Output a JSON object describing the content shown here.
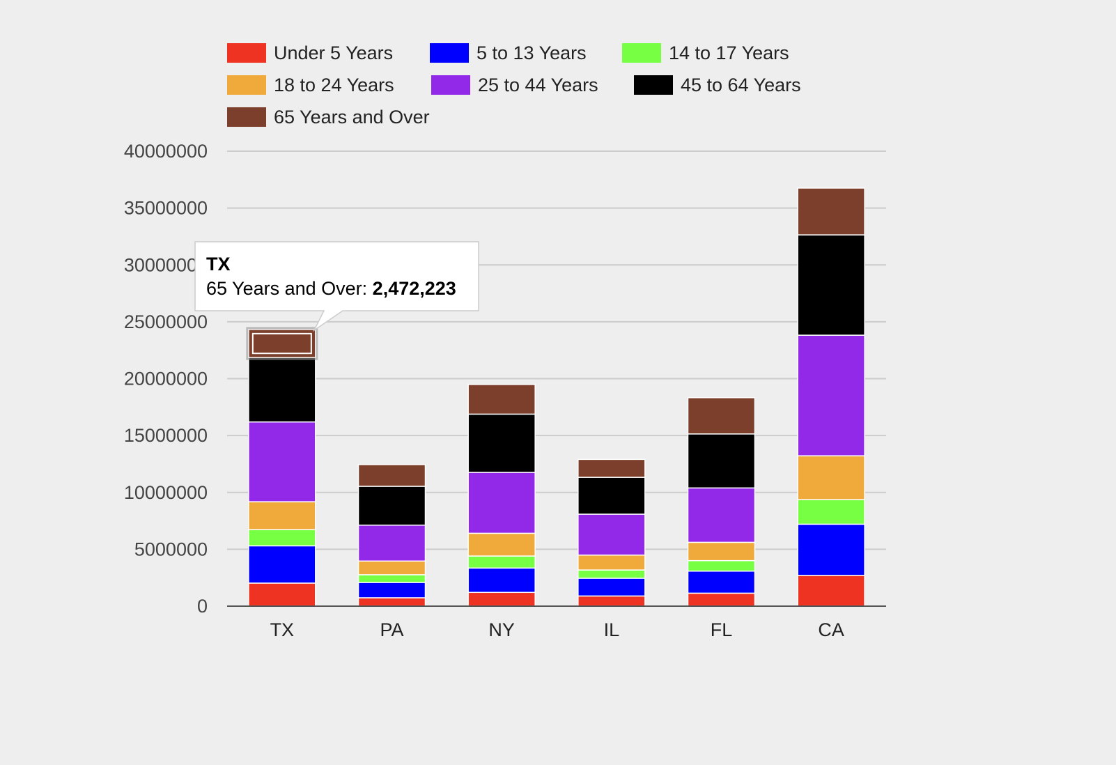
{
  "chart_data": {
    "type": "bar",
    "stacked": true,
    "categories": [
      "TX",
      "PA",
      "NY",
      "IL",
      "FL",
      "CA"
    ],
    "series": [
      {
        "name": "Under 5 Years",
        "color": "#ee3322",
        "values": [
          2027307,
          737462,
          1208495,
          894368,
          1140516,
          2704659
        ]
      },
      {
        "name": "5 to 13 Years",
        "color": "#0000ff",
        "values": [
          3277946,
          1345341,
          2141490,
          1558919,
          1938695,
          4499890
        ]
      },
      {
        "name": "14 to 17 Years",
        "color": "#77ff44",
        "values": [
          1420518,
          679201,
          1058031,
          725973,
          925060,
          2159981
        ]
      },
      {
        "name": "18 to 24 Years",
        "color": "#f0aa3c",
        "values": [
          2454721,
          1203944,
          1999120,
          1311479,
          1607297,
          3853788
        ]
      },
      {
        "name": "25 to 44 Years",
        "color": "#9329e8",
        "values": [
          7017731,
          3157759,
          5355235,
          3596343,
          4782119,
          10604510
        ]
      },
      {
        "name": "45 to 64 Years",
        "color": "#000000",
        "values": [
          5656528,
          3414001,
          5120254,
          3239173,
          4746856,
          8819342
        ]
      },
      {
        "name": "65 Years and Over",
        "color": "#7b3f2b",
        "values": [
          2472223,
          1910571,
          2607672,
          1575308,
          3187797,
          4114496
        ]
      }
    ],
    "yticks": [
      "0",
      "5000000",
      "10000000",
      "15000000",
      "20000000",
      "25000000",
      "30000000",
      "35000000",
      "40000000"
    ],
    "ylim": [
      0,
      40000000
    ],
    "legend_position": "top",
    "grid": true
  },
  "tooltip": {
    "category": "TX",
    "series": "65 Years and Over",
    "label": "65 Years and Over: ",
    "value": "2,472,223"
  }
}
